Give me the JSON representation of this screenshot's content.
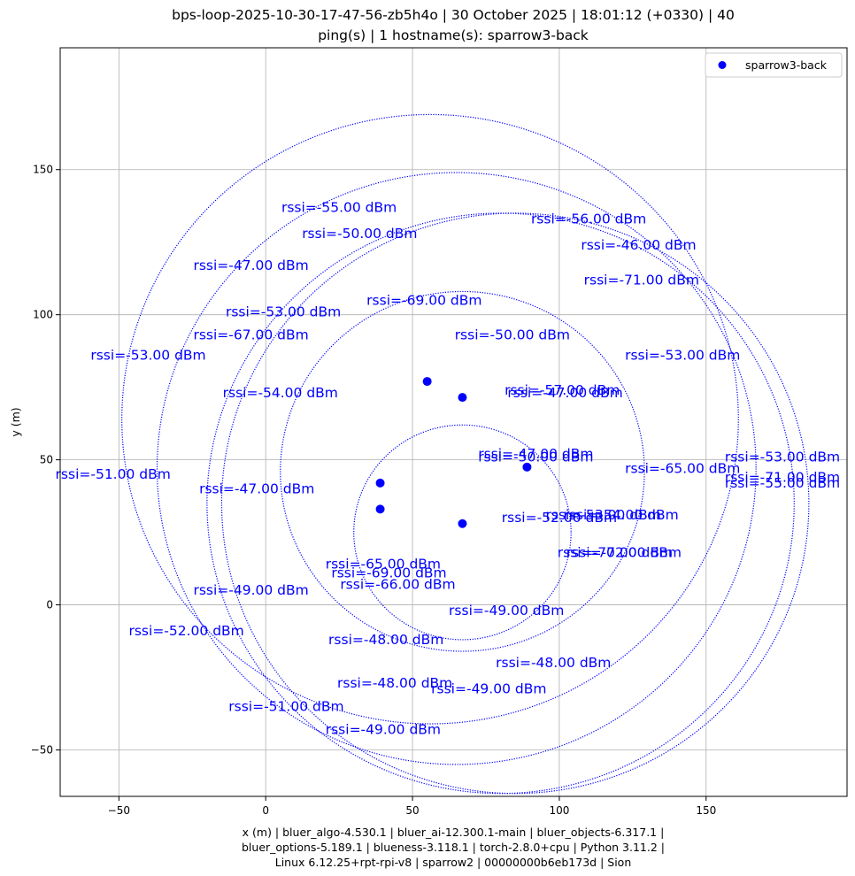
{
  "chart_data": {
    "type": "scatter",
    "title_lines": [
      "bps-loop-2025-10-30-17-47-56-zb5h4o | 30 October 2025 | 18:01:12 (+0330) | 40",
      "ping(s) | 1 hostname(s): sparrow3-back"
    ],
    "xlabel_lines": [
      "x (m) | bluer_algo-4.530.1 | bluer_ai-12.300.1-main | bluer_objects-6.317.1 |",
      "bluer_options-5.189.1 | blueness-3.118.1 | torch-2.8.0+cpu | Python 3.11.2 |",
      "Linux 6.12.25+rpt-rpi-v8 | sparrow2 | 00000000b6eb173d | Sion"
    ],
    "ylabel": "y (m)",
    "xlim": [
      -70,
      198
    ],
    "ylim": [
      -66,
      192
    ],
    "xticks": [
      -50,
      0,
      50,
      100,
      150
    ],
    "yticks": [
      -50,
      0,
      50,
      100,
      150
    ],
    "tick_labels_x": [
      "−50",
      "0",
      "50",
      "100",
      "150"
    ],
    "tick_labels_y": [
      "−50",
      "0",
      "50",
      "100",
      "150"
    ],
    "grid": true,
    "legend": {
      "position": "top-right",
      "entries": [
        {
          "label": "sparrow3-back",
          "color": "#0000ff"
        }
      ]
    },
    "series": [
      {
        "name": "sparrow3-back",
        "color": "#0000ff",
        "points": [
          {
            "x": 55,
            "y": 77
          },
          {
            "x": 67,
            "y": 71.5
          },
          {
            "x": 89,
            "y": 47.5
          },
          {
            "x": 39,
            "y": 42
          },
          {
            "x": 39,
            "y": 33
          },
          {
            "x": 67,
            "y": 28
          }
        ]
      }
    ],
    "circles": [
      {
        "cx": 56,
        "cy": 64,
        "r": 105
      },
      {
        "cx": 65,
        "cy": 47,
        "r": 102
      },
      {
        "cx": 85,
        "cy": 35,
        "r": 100
      },
      {
        "cx": 80,
        "cy": 35,
        "r": 100
      },
      {
        "cx": 67,
        "cy": 46,
        "r": 62
      },
      {
        "cx": 67,
        "cy": 25,
        "r": 37
      }
    ],
    "annotations": [
      {
        "text": "rssi=-55.00 dBm",
        "x": 25,
        "y": 137
      },
      {
        "text": "rssi=-50.00 dBm",
        "x": 32,
        "y": 128
      },
      {
        "text": "rssi=-56.00 dBm",
        "x": 110,
        "y": 133
      },
      {
        "text": "rssi=-46.00 dBm",
        "x": 127,
        "y": 124
      },
      {
        "text": "rssi=-47.00 dBm",
        "x": -5,
        "y": 117
      },
      {
        "text": "rssi=-71.00 dBm",
        "x": 128,
        "y": 112
      },
      {
        "text": "rssi=-69.00 dBm",
        "x": 54,
        "y": 105
      },
      {
        "text": "rssi=-53.00 dBm",
        "x": 6,
        "y": 101
      },
      {
        "text": "rssi=-67.00 dBm",
        "x": -5,
        "y": 93
      },
      {
        "text": "rssi=-50.00 dBm",
        "x": 84,
        "y": 93
      },
      {
        "text": "rssi=-53.00 dBm",
        "x": -40,
        "y": 86
      },
      {
        "text": "rssi=-53.00 dBm",
        "x": 142,
        "y": 86
      },
      {
        "text": "rssi=-57.00 dBm",
        "x": 101,
        "y": 74
      },
      {
        "text": "rssi=-47.00 dBm",
        "x": 102,
        "y": 73
      },
      {
        "text": "rssi=-54.00 dBm",
        "x": 5,
        "y": 73
      },
      {
        "text": "rssi=-47.00 dBm",
        "x": 92,
        "y": 52
      },
      {
        "text": "rssi=-50.00 dBm",
        "x": 92,
        "y": 51
      },
      {
        "text": "rssi=-53.00 dBm",
        "x": 176,
        "y": 51
      },
      {
        "text": "rssi=-65.00 dBm",
        "x": 142,
        "y": 47
      },
      {
        "text": "rssi=-51.00 dBm",
        "x": -52,
        "y": 45
      },
      {
        "text": "rssi=-71.00 dBm",
        "x": 176,
        "y": 44
      },
      {
        "text": "rssi=-55.00 dBm",
        "x": 176,
        "y": 42
      },
      {
        "text": "rssi=-47.00 dBm",
        "x": -3,
        "y": 40
      },
      {
        "text": "rssi=-53.00 dBm",
        "x": 115,
        "y": 31
      },
      {
        "text": "rssi=-54.00 dBm",
        "x": 121,
        "y": 31
      },
      {
        "text": "rssi=-52.00 dBm",
        "x": 100,
        "y": 30
      },
      {
        "text": "rssi=-70.00 dBm",
        "x": 119,
        "y": 18
      },
      {
        "text": "rssi=-72.00 dBm",
        "x": 122,
        "y": 18
      },
      {
        "text": "rssi=-65.00 dBm",
        "x": 40,
        "y": 14
      },
      {
        "text": "rssi=-69.00 dBm",
        "x": 42,
        "y": 11
      },
      {
        "text": "rssi=-66.00 dBm",
        "x": 45,
        "y": 7
      },
      {
        "text": "rssi=-49.00 dBm",
        "x": -5,
        "y": 5
      },
      {
        "text": "rssi=-49.00 dBm",
        "x": 82,
        "y": -2
      },
      {
        "text": "rssi=-52.00 dBm",
        "x": -27,
        "y": -9
      },
      {
        "text": "rssi=-48.00 dBm",
        "x": 41,
        "y": -12
      },
      {
        "text": "rssi=-48.00 dBm",
        "x": 98,
        "y": -20
      },
      {
        "text": "rssi=-48.00 dBm",
        "x": 44,
        "y": -27
      },
      {
        "text": "rssi=-49.00 dBm",
        "x": 76,
        "y": -29
      },
      {
        "text": "rssi=-51.00 dBm",
        "x": 7,
        "y": -35
      },
      {
        "text": "rssi=-49.00 dBm",
        "x": 40,
        "y": -43
      }
    ]
  }
}
